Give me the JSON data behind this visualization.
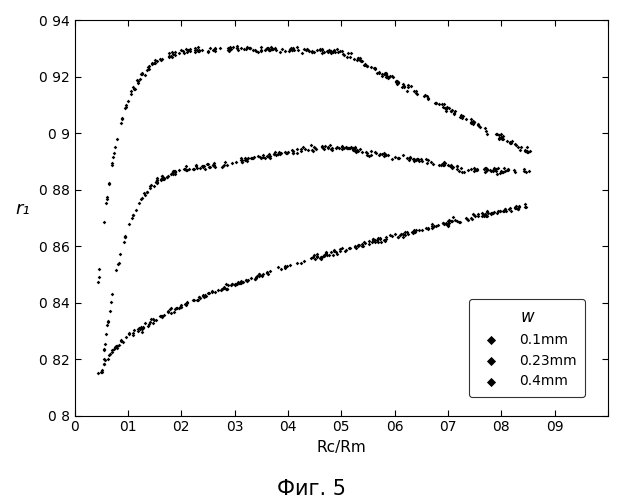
{
  "title": "",
  "xlabel": "Rc/Rm",
  "ylabel": "r₁",
  "caption": "Фиг. 5",
  "xlim": [
    0,
    1.0
  ],
  "ylim": [
    0.8,
    0.94
  ],
  "xticks": [
    0,
    0.1,
    0.2,
    0.3,
    0.4,
    0.5,
    0.6,
    0.7,
    0.8,
    0.9,
    1.0
  ],
  "xticklabels": [
    "0",
    "01",
    "02",
    "03",
    "04",
    "05",
    "06",
    "07",
    "08",
    "09",
    ""
  ],
  "yticks": [
    0.8,
    0.82,
    0.84,
    0.86,
    0.88,
    0.9,
    0.92,
    0.94
  ],
  "yticklabels": [
    "0 8",
    "0 82",
    "0 84",
    "0 86",
    "0 88",
    "0 9",
    "0 92",
    "0 94"
  ],
  "legend_title": "w",
  "legend_labels": [
    "0.1mm",
    "0.23mm",
    "0.4mm"
  ],
  "background_color": "#ffffff",
  "line_color": "#000000"
}
